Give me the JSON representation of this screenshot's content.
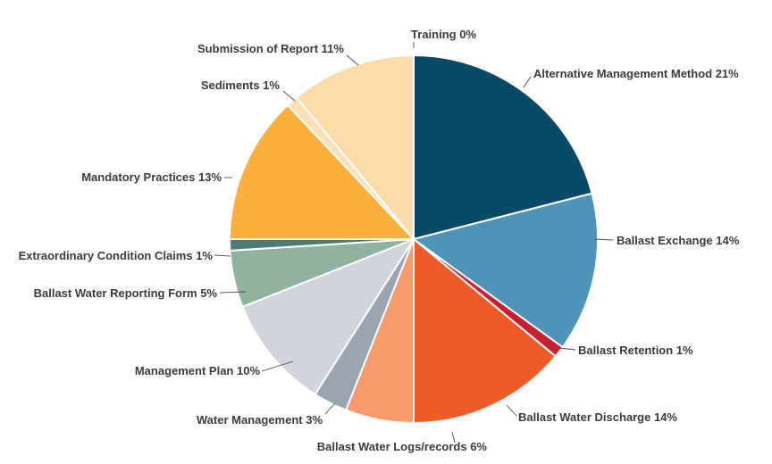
{
  "chart_data": {
    "type": "pie",
    "title": "",
    "start_angle_deg": 0,
    "direction": "clockwise",
    "slices": [
      {
        "label": "Alternative Management Method 21%",
        "category": "Alternative Management Method",
        "value": 21,
        "color": "#0b4a66"
      },
      {
        "label": "Ballast Exchange 14%",
        "category": "Ballast Exchange",
        "value": 14,
        "color": "#4f93b6"
      },
      {
        "label": "Ballast Retention 1%",
        "category": "Ballast Retention",
        "value": 1,
        "color": "#c8202f"
      },
      {
        "label": "Ballast Water Discharge 14%",
        "category": "Ballast Water Discharge",
        "value": 14,
        "color": "#ef5a29"
      },
      {
        "label": "Ballast Water Logs/records 6%",
        "category": "Ballast Water Logs/records",
        "value": 6,
        "color": "#f79a6c"
      },
      {
        "label": "Water Management 3%",
        "category": "Water Management",
        "value": 3,
        "color": "#9aa5b1"
      },
      {
        "label": "Management Plan 10%",
        "category": "Management Plan",
        "value": 10,
        "color": "#d1d4db"
      },
      {
        "label": "Ballast Water Reporting Form 5%",
        "category": "Ballast Water Reporting Form",
        "value": 5,
        "color": "#8fb39e"
      },
      {
        "label": "Extraordinary Condition Claims 1%",
        "category": "Extraordinary Condition Claims",
        "value": 1,
        "color": "#4e7a78"
      },
      {
        "label": "Mandatory Practices 13%",
        "category": "Mandatory Practices",
        "value": 13,
        "color": "#fbb03b"
      },
      {
        "label": "Sediments 1%",
        "category": "Sediments",
        "value": 1,
        "color": "#fde0b5"
      },
      {
        "label": "Submission of Report 11%",
        "category": "Submission of Report",
        "value": 11,
        "color": "#fddbab"
      },
      {
        "label": "Training 0%",
        "category": "Training",
        "value": 0,
        "color": "#f2c2a0"
      }
    ]
  }
}
